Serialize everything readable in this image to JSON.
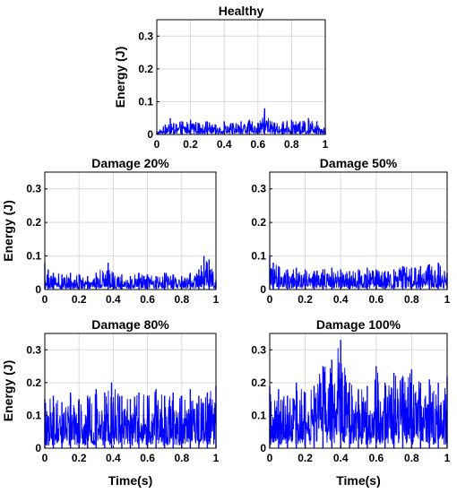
{
  "chart_data": [
    {
      "type": "line",
      "title": "Healthy",
      "xlabel": "",
      "ylabel": "Energy (J)",
      "xlim": [
        0,
        1
      ],
      "ylim": [
        0,
        0.35
      ],
      "xticks": [
        0,
        0.2,
        0.4,
        0.6,
        0.8,
        1
      ],
      "xticklabels": [
        "0",
        "0.2",
        "0.4",
        "0.6",
        "0.8",
        "1"
      ],
      "yticks": [
        0,
        0.1,
        0.2,
        0.3
      ],
      "yticklabels": [
        "0",
        "0.1",
        "0.2",
        "0.3"
      ],
      "grid": true,
      "color": "#0000ff",
      "series": [
        {
          "x": [
            0,
            0.05,
            0.08,
            0.1,
            0.15,
            0.2,
            0.25,
            0.3,
            0.35,
            0.4,
            0.45,
            0.5,
            0.55,
            0.6,
            0.64,
            0.7,
            0.75,
            0.8,
            0.85,
            0.9,
            0.95,
            1
          ],
          "y": [
            0.01,
            0.03,
            0.05,
            0.035,
            0.04,
            0.045,
            0.035,
            0.04,
            0.03,
            0.04,
            0.035,
            0.04,
            0.045,
            0.035,
            0.08,
            0.035,
            0.04,
            0.045,
            0.04,
            0.05,
            0.04,
            0.02
          ]
        }
      ]
    },
    {
      "type": "line",
      "title": "Damage 20%",
      "xlabel": "",
      "ylabel": "Energy (J)",
      "xlim": [
        0,
        1
      ],
      "ylim": [
        0,
        0.35
      ],
      "xticks": [
        0,
        0.2,
        0.4,
        0.6,
        0.8,
        1
      ],
      "xticklabels": [
        "0",
        "0.2",
        "0.4",
        "0.6",
        "0.8",
        "1"
      ],
      "yticks": [
        0,
        0.1,
        0.2,
        0.3
      ],
      "yticklabels": [
        "0",
        "0.1",
        "0.2",
        "0.3"
      ],
      "grid": true,
      "color": "#0000ff",
      "series": [
        {
          "x": [
            0,
            0.02,
            0.05,
            0.1,
            0.15,
            0.2,
            0.25,
            0.3,
            0.37,
            0.4,
            0.45,
            0.5,
            0.55,
            0.6,
            0.65,
            0.7,
            0.75,
            0.8,
            0.85,
            0.9,
            0.93,
            0.96,
            1
          ],
          "y": [
            0.08,
            0.06,
            0.05,
            0.045,
            0.05,
            0.045,
            0.04,
            0.05,
            0.08,
            0.05,
            0.045,
            0.04,
            0.05,
            0.045,
            0.04,
            0.05,
            0.045,
            0.04,
            0.05,
            0.06,
            0.1,
            0.09,
            0.03
          ]
        }
      ]
    },
    {
      "type": "line",
      "title": "Damage 50%",
      "xlabel": "",
      "ylabel": "",
      "xlim": [
        0,
        1
      ],
      "ylim": [
        0,
        0.35
      ],
      "xticks": [
        0,
        0.2,
        0.4,
        0.6,
        0.8,
        1
      ],
      "xticklabels": [
        "0",
        "0.2",
        "0.4",
        "0.6",
        "0.8",
        "1"
      ],
      "yticks": [
        0,
        0.1,
        0.2,
        0.3
      ],
      "yticklabels": [
        "0",
        "0.1",
        "0.2",
        "0.3"
      ],
      "grid": true,
      "color": "#0000ff",
      "series": [
        {
          "x": [
            0,
            0.02,
            0.05,
            0.1,
            0.15,
            0.2,
            0.25,
            0.3,
            0.35,
            0.4,
            0.45,
            0.5,
            0.55,
            0.6,
            0.65,
            0.7,
            0.75,
            0.8,
            0.85,
            0.9,
            0.95,
            1
          ],
          "y": [
            0.1,
            0.08,
            0.07,
            0.06,
            0.065,
            0.06,
            0.055,
            0.06,
            0.065,
            0.06,
            0.055,
            0.06,
            0.065,
            0.06,
            0.055,
            0.06,
            0.07,
            0.065,
            0.07,
            0.075,
            0.08,
            0.05
          ]
        }
      ]
    },
    {
      "type": "line",
      "title": "Damage 80%",
      "xlabel": "Time(s)",
      "ylabel": "Energy (J)",
      "xlim": [
        0,
        1
      ],
      "ylim": [
        0,
        0.35
      ],
      "xticks": [
        0,
        0.2,
        0.4,
        0.6,
        0.8,
        1
      ],
      "xticklabels": [
        "0",
        "0.2",
        "0.4",
        "0.6",
        "0.8",
        "1"
      ],
      "yticks": [
        0,
        0.1,
        0.2,
        0.3
      ],
      "yticklabels": [
        "0",
        "0.1",
        "0.2",
        "0.3"
      ],
      "grid": true,
      "color": "#0000ff",
      "series": [
        {
          "x": [
            0,
            0.05,
            0.1,
            0.15,
            0.2,
            0.25,
            0.3,
            0.35,
            0.39,
            0.45,
            0.5,
            0.55,
            0.6,
            0.65,
            0.7,
            0.75,
            0.8,
            0.85,
            0.9,
            0.95,
            1
          ],
          "y": [
            0.15,
            0.16,
            0.14,
            0.17,
            0.15,
            0.16,
            0.18,
            0.17,
            0.2,
            0.16,
            0.15,
            0.17,
            0.16,
            0.18,
            0.16,
            0.17,
            0.16,
            0.18,
            0.16,
            0.17,
            0.19
          ]
        }
      ]
    },
    {
      "type": "line",
      "title": "Damage 100%",
      "xlabel": "Time(s)",
      "ylabel": "",
      "xlim": [
        0,
        1
      ],
      "ylim": [
        0,
        0.35
      ],
      "xticks": [
        0,
        0.2,
        0.4,
        0.6,
        0.8,
        1
      ],
      "xticklabels": [
        "0",
        "0.2",
        "0.4",
        "0.6",
        "0.8",
        "1"
      ],
      "yticks": [
        0,
        0.1,
        0.2,
        0.3
      ],
      "yticklabels": [
        "0",
        "0.1",
        "0.2",
        "0.3"
      ],
      "grid": true,
      "color": "#0000ff",
      "series": [
        {
          "x": [
            0,
            0.05,
            0.1,
            0.15,
            0.2,
            0.25,
            0.3,
            0.35,
            0.4,
            0.45,
            0.5,
            0.55,
            0.6,
            0.65,
            0.7,
            0.75,
            0.8,
            0.85,
            0.9,
            0.95,
            1
          ],
          "y": [
            0.19,
            0.18,
            0.16,
            0.2,
            0.17,
            0.19,
            0.25,
            0.27,
            0.33,
            0.2,
            0.18,
            0.19,
            0.25,
            0.2,
            0.23,
            0.22,
            0.24,
            0.2,
            0.21,
            0.2,
            0.22
          ]
        }
      ]
    }
  ]
}
